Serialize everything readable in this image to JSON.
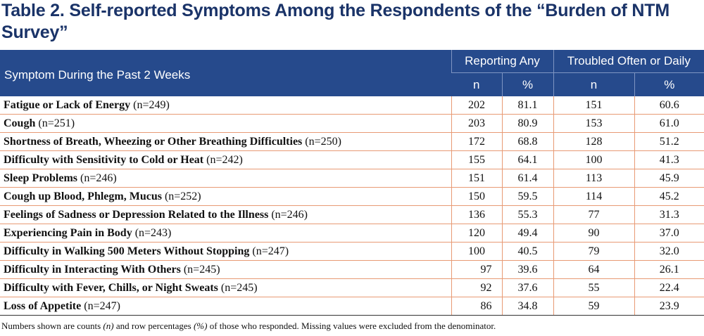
{
  "title": "Table 2. Self-reported Symptoms Among the Respondents of the “Burden of NTM Survey”",
  "header": {
    "symptom_col": "Symptom During the Past 2 Weeks",
    "group1": "Reporting Any",
    "group2": "Troubled Often or Daily",
    "n": "n",
    "pct": "%"
  },
  "rows": [
    {
      "label": "Fatigue or Lack of Energy",
      "count": "(n=249)",
      "any_n": "202",
      "any_pct": "81.1",
      "often_n": "151",
      "often_pct": "60.6"
    },
    {
      "label": "Cough",
      "count": "(n=251)",
      "any_n": "203",
      "any_pct": "80.9",
      "often_n": "153",
      "often_pct": "61.0"
    },
    {
      "label": "Shortness of Breath, Wheezing or Other Breathing Difficulties",
      "count": "(n=250)",
      "any_n": "172",
      "any_pct": "68.8",
      "often_n": "128",
      "often_pct": "51.2"
    },
    {
      "label": "Difficulty with Sensitivity to Cold or Heat",
      "count": "(n=242)",
      "any_n": "155",
      "any_pct": "64.1",
      "often_n": "100",
      "often_pct": "41.3"
    },
    {
      "label": "Sleep Problems",
      "count": "(n=246)",
      "any_n": "151",
      "any_pct": "61.4",
      "often_n": "113",
      "often_pct": "45.9"
    },
    {
      "label": "Cough up Blood, Phlegm, Mucus",
      "count": "(n=252)",
      "any_n": "150",
      "any_pct": "59.5",
      "often_n": "114",
      "often_pct": "45.2"
    },
    {
      "label": "Feelings of Sadness or Depression Related to the Illness",
      "count": "(n=246)",
      "any_n": "136",
      "any_pct": "55.3",
      "often_n": "77",
      "often_pct": "31.3"
    },
    {
      "label": "Experiencing Pain in Body",
      "count": "(n=243)",
      "any_n": "120",
      "any_pct": "49.4",
      "often_n": "90",
      "often_pct": "37.0"
    },
    {
      "label": "Difficulty in Walking 500 Meters Without Stopping",
      "count": "(n=247)",
      "any_n": "100",
      "any_pct": "40.5",
      "often_n": "79",
      "often_pct": "32.0"
    },
    {
      "label": "Difficulty in Interacting With Others",
      "count": "(n=245)",
      "any_n": "97",
      "any_pct": "39.6",
      "often_n": "64",
      "often_pct": "26.1"
    },
    {
      "label": "Difficulty with Fever, Chills, or Night Sweats",
      "count": "(n=245)",
      "any_n": "92",
      "any_pct": "37.6",
      "often_n": "55",
      "often_pct": "22.4"
    },
    {
      "label": "Loss of Appetite",
      "count": "(n=247)",
      "any_n": "86",
      "any_pct": "34.8",
      "often_n": "59",
      "often_pct": "23.9"
    }
  ],
  "footnote": {
    "part1": "Numbers shown are counts ",
    "n_italic": "(n)",
    "part2": " and row percentages ",
    "pct_italic": "(%)",
    "part3": " of those who responded. Missing values were excluded from the denominator."
  }
}
